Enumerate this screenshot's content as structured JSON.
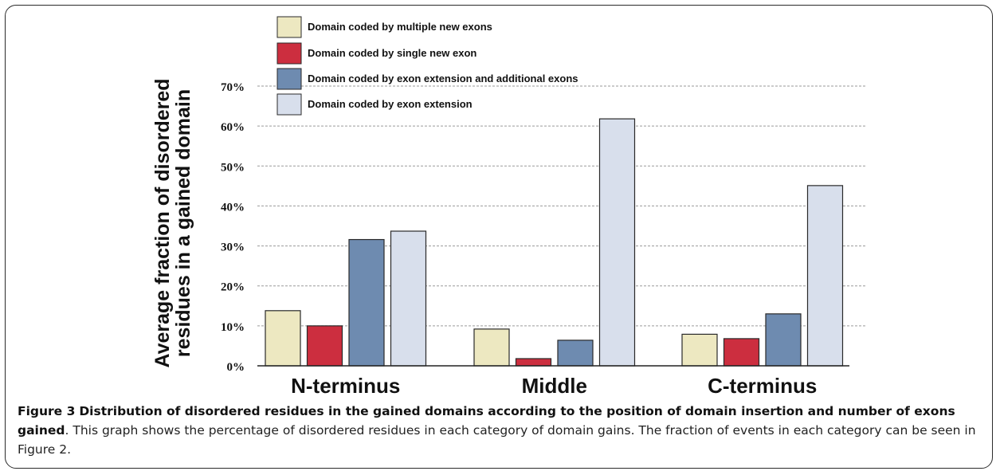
{
  "chart_data": {
    "type": "bar",
    "categories": [
      "N-terminus",
      "Middle",
      "C-terminus"
    ],
    "series": [
      {
        "name": "Domain coded by multiple new exons",
        "color": "#ede8c1",
        "values": [
          13.8,
          9.2,
          7.9
        ]
      },
      {
        "name": "Domain coded by single new exon",
        "color": "#cc2e3f",
        "values": [
          10.0,
          1.8,
          6.8
        ]
      },
      {
        "name": "Domain coded by exon extension and additional exons",
        "color": "#6e8bb0",
        "values": [
          31.6,
          6.4,
          13.0
        ]
      },
      {
        "name": "Domain coded by exon extension",
        "color": "#d8dfec",
        "values": [
          33.7,
          61.8,
          45.1
        ]
      }
    ],
    "ylabel": "Average fraction of disordered residues in a gained domain",
    "ylabel_lines": [
      "Average fraction of disordered",
      "residues in a gained domain"
    ],
    "ylim": [
      0,
      70
    ],
    "yticks": [
      "0%",
      "10%",
      "20%",
      "30%",
      "40%",
      "50%",
      "60%",
      "70%"
    ],
    "grid": true,
    "legend_position": "top"
  },
  "caption": {
    "label": "Figure 3",
    "title": "Distribution of disordered residues in the gained domains according to the position of domain insertion and number of exons gained",
    "text": ". This graph shows the percentage of disordered residues in each category of domain gains. The fraction of events in each category can be seen in Figure 2."
  }
}
